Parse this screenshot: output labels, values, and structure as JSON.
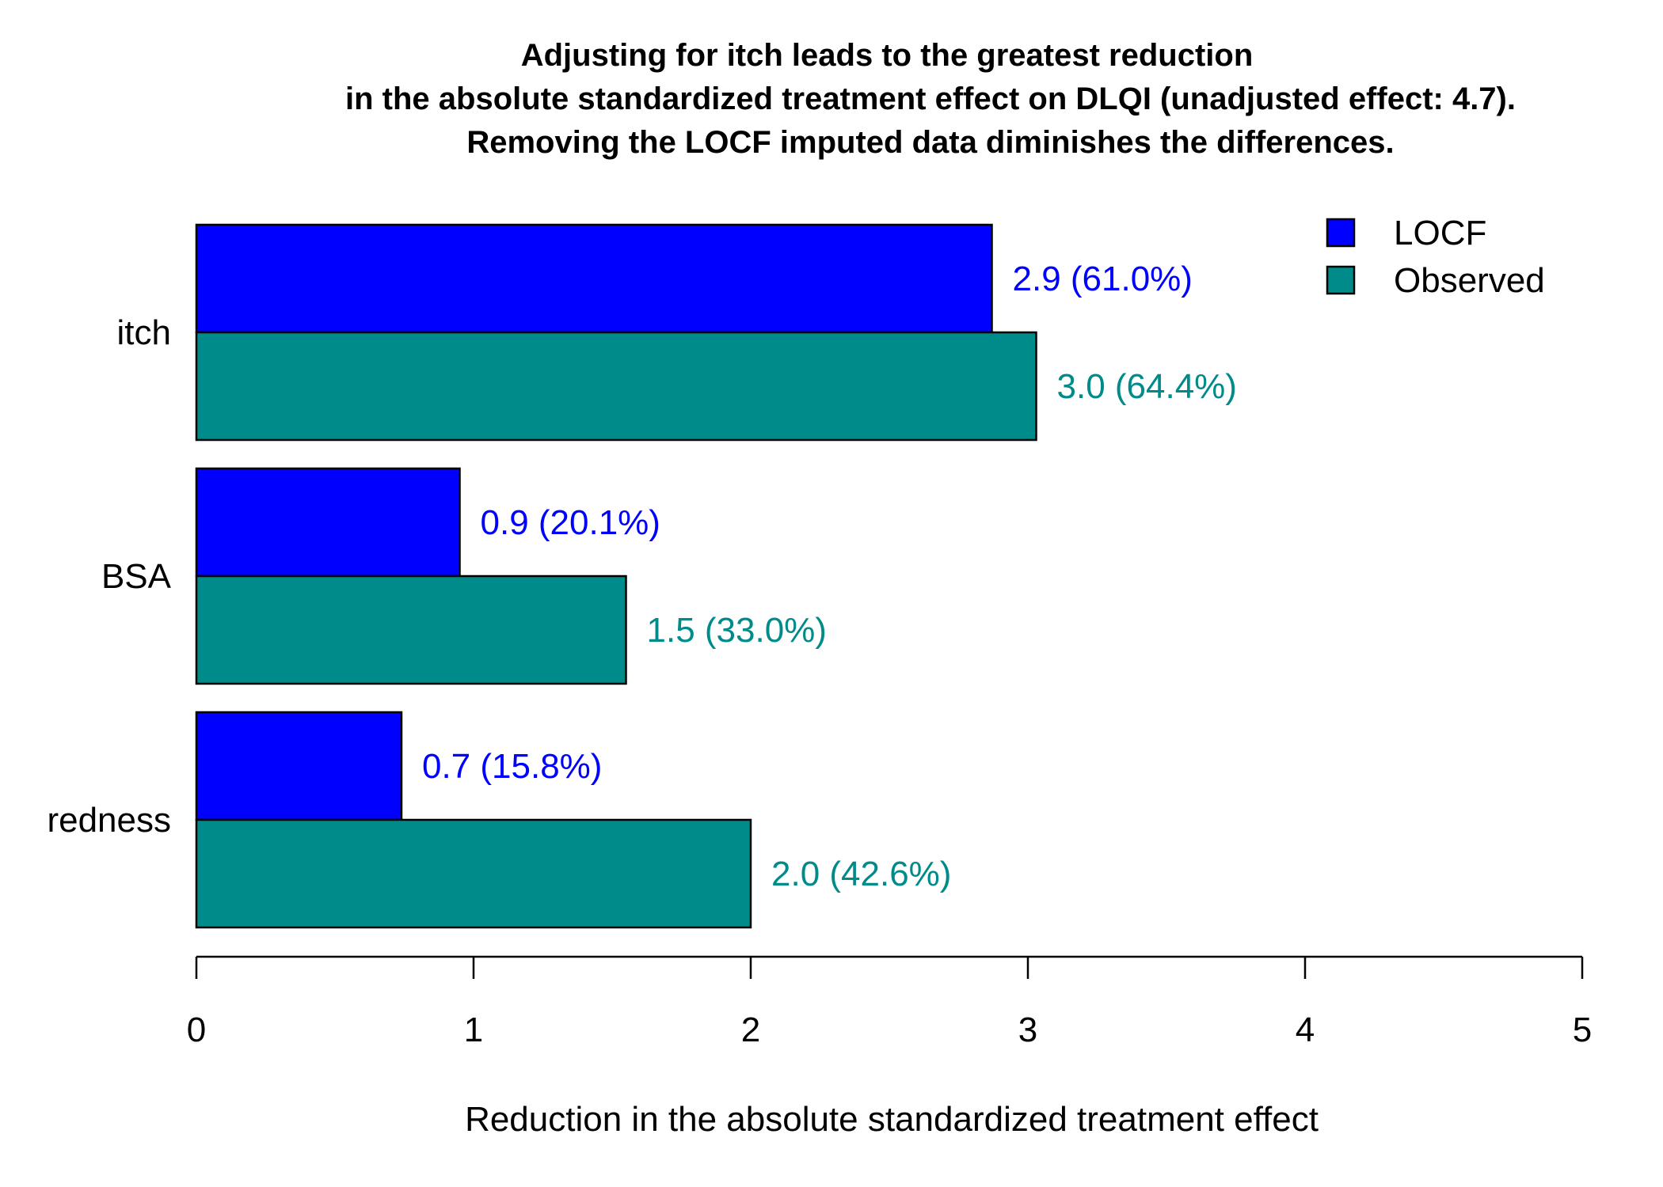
{
  "chart_data": {
    "type": "bar",
    "orientation": "horizontal",
    "title_lines": [
      "Adjusting for itch leads to the greatest reduction",
      "in the absolute standardized treatment effect on DLQI (unadjusted effect: 4.7).",
      "Removing the LOCF imputed data diminishes the differences."
    ],
    "categories": [
      "itch",
      "BSA",
      "redness"
    ],
    "series": [
      {
        "name": "LOCF",
        "color": "#0000FF",
        "values": [
          2.87,
          0.95,
          0.74
        ],
        "labels": [
          "2.9 (61.0%)",
          "0.9 (20.1%)",
          "0.7 (15.8%)"
        ]
      },
      {
        "name": "Observed",
        "color": "#008B8B",
        "values": [
          3.03,
          1.55,
          2.0
        ],
        "labels": [
          "3.0 (64.4%)",
          "1.5 (33.0%)",
          "2.0 (42.6%)"
        ]
      }
    ],
    "xlabel": "Reduction in the absolute standardized treatment effect",
    "ylabel": "",
    "xlim": [
      0,
      5
    ],
    "xticks": [
      0,
      1,
      2,
      3,
      4,
      5
    ],
    "grid": false,
    "legend_position": "top-right"
  }
}
